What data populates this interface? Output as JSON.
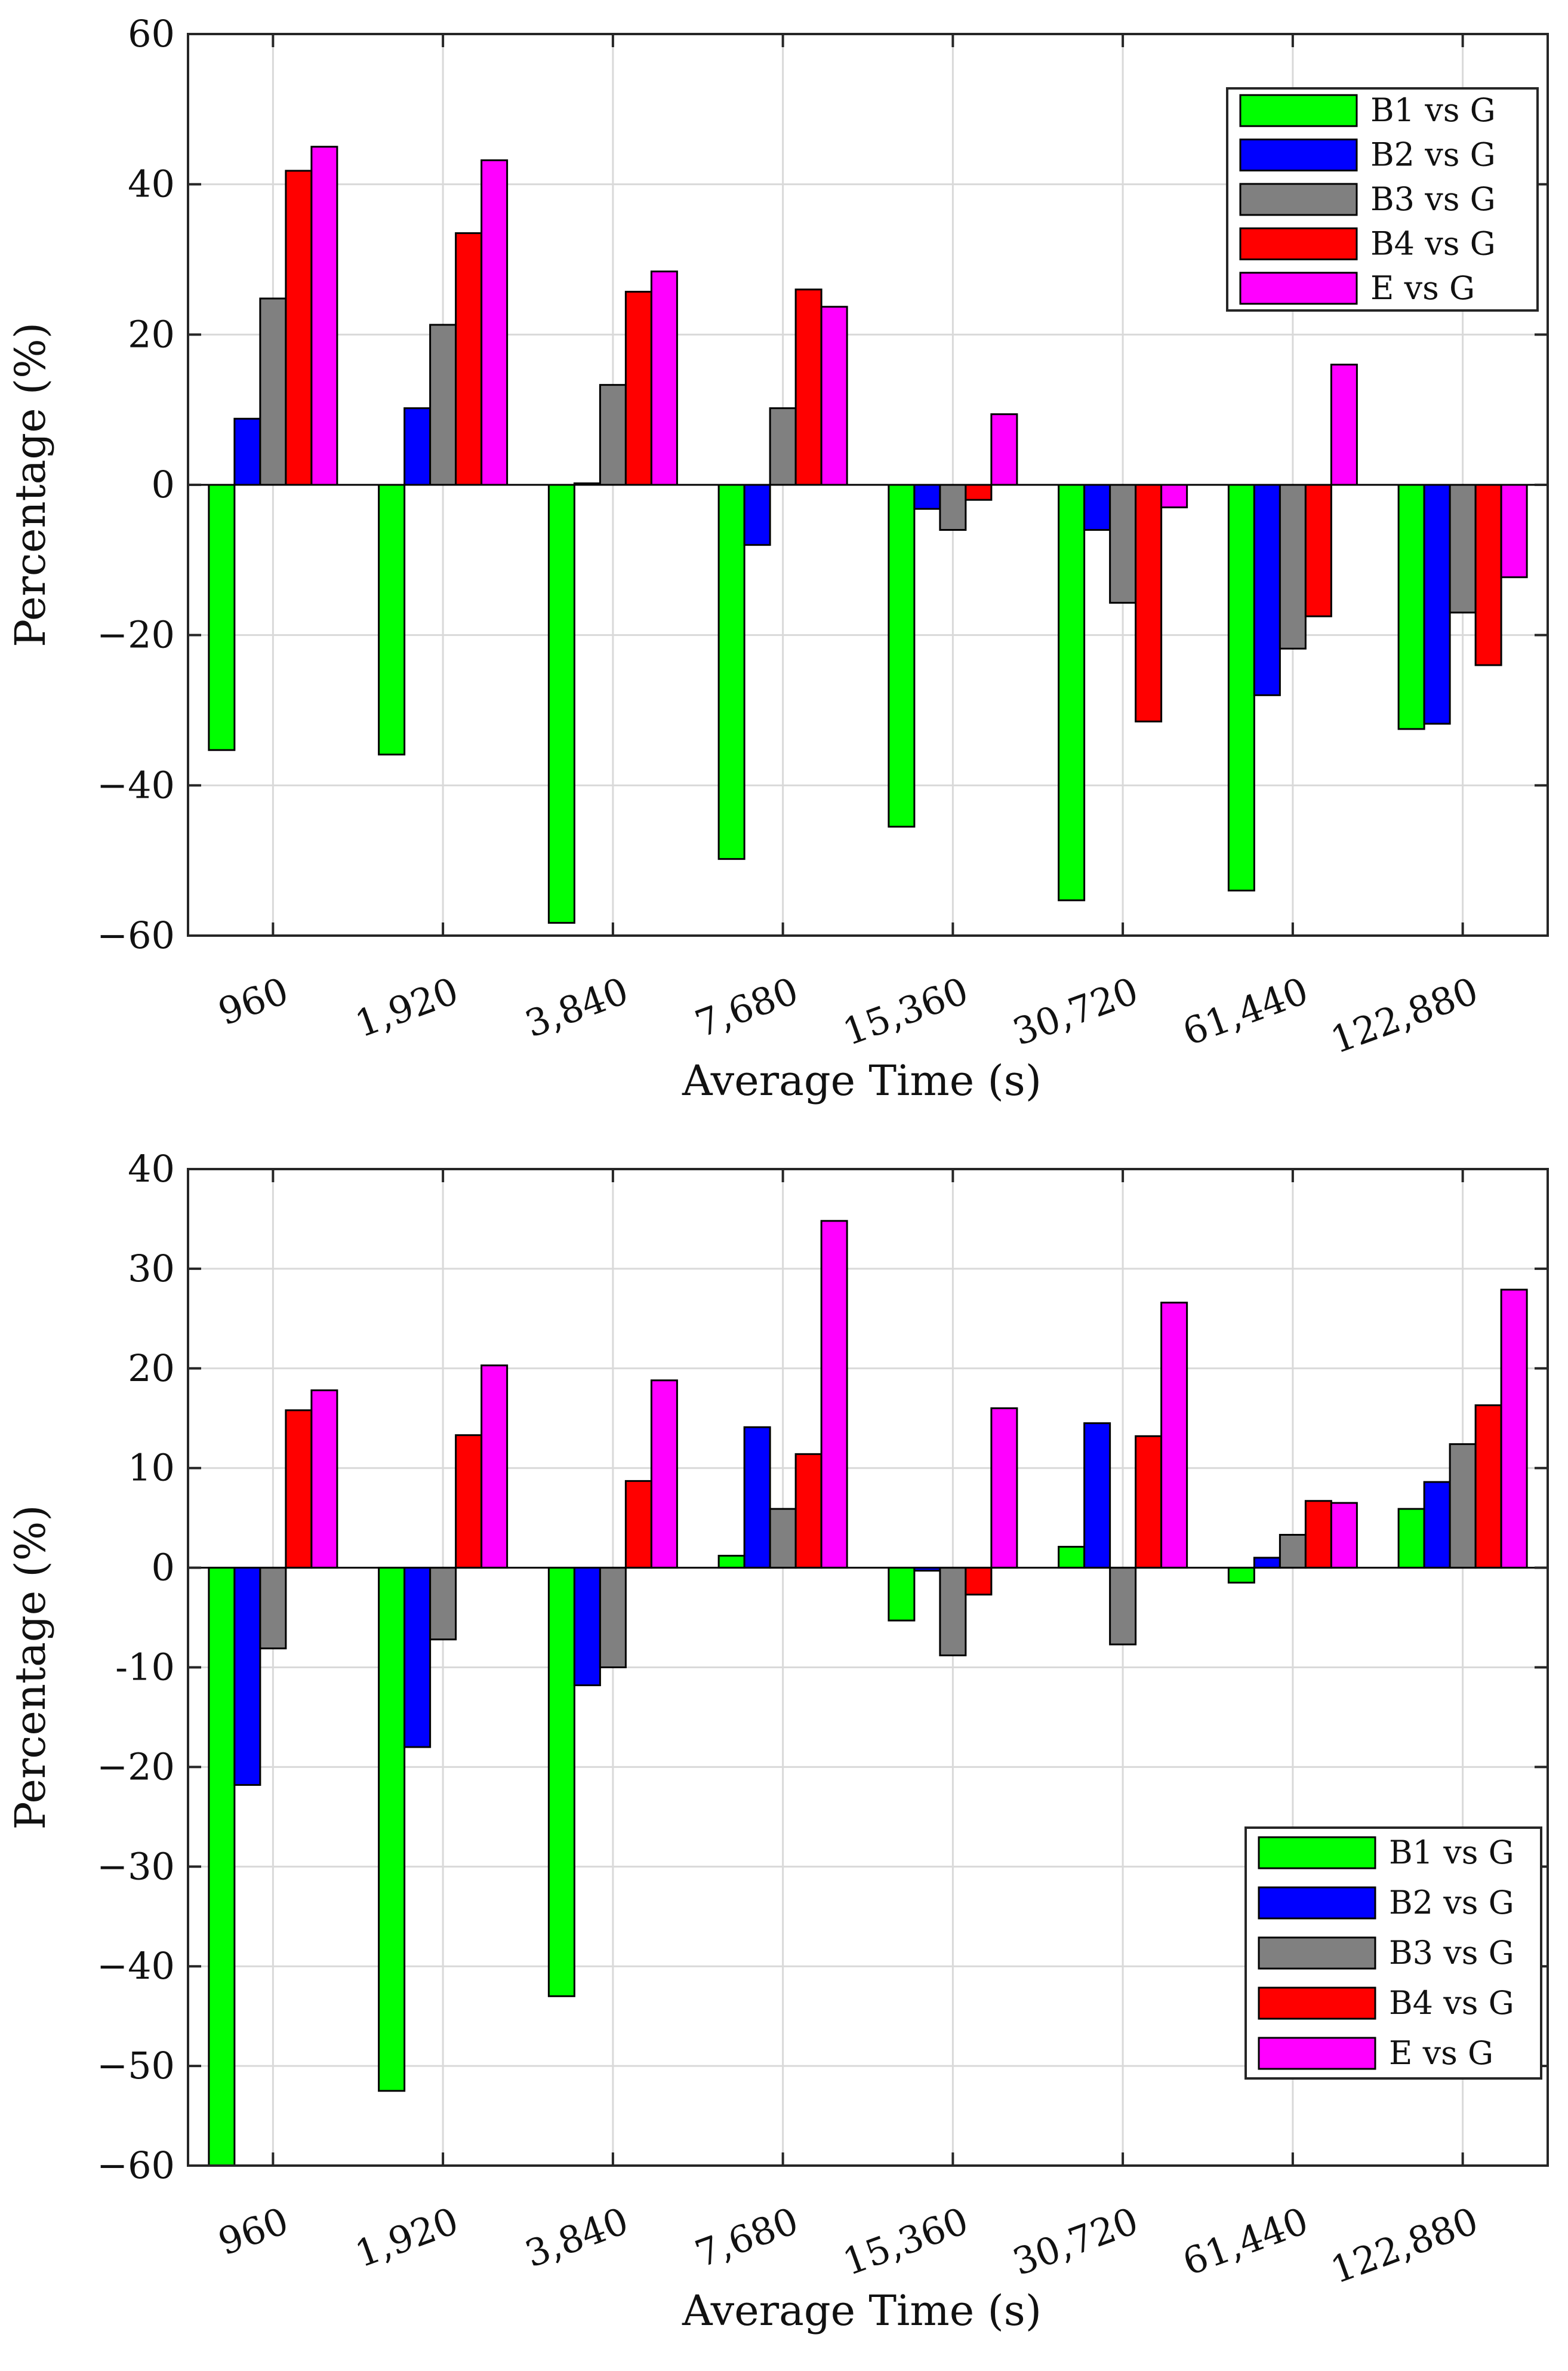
{
  "colors": {
    "B1 vs G": "#00ff00",
    "B2 vs G": "#0000ff",
    "B3 vs G": "#808080",
    "B4 vs G": "#ff0000",
    "E vs G": "#ff00ff",
    "grid": "#d9d9d9",
    "axis": "#262626"
  },
  "chart_data": [
    {
      "type": "bar",
      "title": "",
      "xlabel": "Average Time (s)",
      "ylabel": "Percentage (%)",
      "categories": [
        "960",
        "1,920",
        "3,840",
        "7,680",
        "15,360",
        "30,720",
        "61,440",
        "122,880"
      ],
      "ylim": [
        -60,
        60
      ],
      "yticks": [
        -60,
        -40,
        -20,
        0,
        20,
        40,
        60
      ],
      "ytick_labels": [
        "−60",
        "−40",
        "−20",
        "0",
        "20",
        "40",
        "60"
      ],
      "grid": true,
      "legend_position": "top-right",
      "series": [
        {
          "name": "B1 vs G",
          "values": [
            -35.3,
            -35.9,
            -58.3,
            -49.8,
            -45.5,
            -55.3,
            -54.0,
            -32.5
          ]
        },
        {
          "name": "B2 vs G",
          "values": [
            8.8,
            10.2,
            0.2,
            -8.0,
            -3.2,
            -6.0,
            -28.0,
            -31.8
          ]
        },
        {
          "name": "B3 vs G",
          "values": [
            24.8,
            21.3,
            13.3,
            10.2,
            -6.0,
            -15.7,
            -21.8,
            -17.0
          ]
        },
        {
          "name": "B4 vs G",
          "values": [
            41.8,
            33.5,
            25.7,
            26.0,
            -2.0,
            -31.5,
            -17.5,
            -24.0
          ]
        },
        {
          "name": "E vs G",
          "values": [
            45.0,
            43.2,
            28.4,
            23.7,
            9.4,
            -3.0,
            16.0,
            -12.3
          ]
        }
      ]
    },
    {
      "type": "bar",
      "title": "",
      "xlabel": "Average Time (s)",
      "ylabel": "Percentage (%)",
      "categories": [
        "960",
        "1,920",
        "3,840",
        "7,680",
        "15,360",
        "30,720",
        "61,440",
        "122,880"
      ],
      "ylim": [
        -60,
        40
      ],
      "yticks": [
        -60,
        -50,
        -40,
        -30,
        -20,
        -10,
        0,
        10,
        20,
        30,
        40
      ],
      "ytick_labels": [
        "−60",
        "−50",
        "−40",
        "−30",
        "−20",
        "-10",
        "0",
        "10",
        "20",
        "30",
        "40"
      ],
      "grid": true,
      "legend_position": "bottom-right",
      "series": [
        {
          "name": "B1 vs G",
          "values": [
            -60.0,
            -52.5,
            -43.0,
            1.2,
            -5.3,
            2.1,
            -1.5,
            5.9
          ]
        },
        {
          "name": "B2 vs G",
          "values": [
            -21.8,
            -18.0,
            -11.8,
            14.1,
            -0.3,
            14.5,
            1.0,
            8.6
          ]
        },
        {
          "name": "B3 vs G",
          "values": [
            -8.1,
            -7.2,
            -10.0,
            5.9,
            -8.8,
            -7.7,
            3.3,
            12.4
          ]
        },
        {
          "name": "B4 vs G",
          "values": [
            15.8,
            13.3,
            8.7,
            11.4,
            -2.7,
            13.2,
            6.7,
            16.3
          ]
        },
        {
          "name": "E vs G",
          "values": [
            17.8,
            20.3,
            18.8,
            34.8,
            16.0,
            26.6,
            6.5,
            27.9
          ]
        }
      ]
    }
  ]
}
